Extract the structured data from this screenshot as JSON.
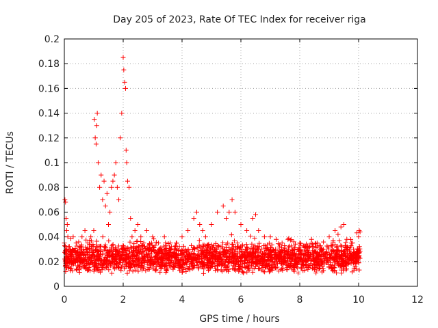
{
  "chart_data": {
    "type": "scatter",
    "title": "Day 205 of 2023, Rate Of TEC Index for receiver riga",
    "xlabel": "GPS time / hours",
    "ylabel": "ROTI / TECUs",
    "xlim": [
      0,
      12
    ],
    "ylim": [
      0,
      0.2
    ],
    "x_ticks": [
      0,
      2,
      4,
      6,
      8,
      10,
      12
    ],
    "y_ticks": [
      0,
      0.02,
      0.04,
      0.06,
      0.08,
      0.1,
      0.12,
      0.14,
      0.16,
      0.18,
      0.2
    ],
    "x_tick_labels": [
      "0",
      "2",
      "4",
      "6",
      "8",
      "10",
      "12"
    ],
    "y_tick_labels": [
      "0",
      "0.02",
      "0.04",
      "0.06",
      "0.08",
      "0.1",
      "0.12",
      "0.14",
      "0.16",
      "0.18",
      "0.2"
    ],
    "grid": true,
    "marker": "+",
    "color": "#ff0000",
    "series": [
      {
        "x": [
          0.0,
          0.02,
          0.04,
          0.06,
          0.08,
          0.1,
          0.12,
          0.14,
          0.05,
          0.07,
          0.2,
          0.25,
          0.3,
          0.4,
          0.5,
          0.6,
          0.7,
          0.8,
          0.9,
          1.0,
          1.02,
          1.05,
          1.08,
          1.1,
          1.12,
          1.15,
          1.2,
          1.25,
          1.3,
          1.35,
          1.4,
          1.45,
          1.5,
          1.55,
          1.6,
          1.65,
          1.7,
          1.75,
          1.8,
          1.85,
          1.9,
          1.95,
          2.0,
          2.02,
          2.05,
          2.08,
          2.1,
          2.12,
          2.15,
          2.2,
          2.25,
          2.3,
          2.4,
          2.5,
          2.6,
          2.7,
          2.8,
          3.0,
          3.2,
          3.4,
          3.6,
          3.8,
          4.0,
          4.2,
          4.4,
          4.5,
          4.6,
          4.7,
          4.8,
          5.0,
          5.2,
          5.4,
          5.5,
          5.6,
          5.7,
          5.8,
          6.0,
          6.2,
          6.4,
          6.5,
          6.6,
          6.8,
          7.0,
          7.2,
          7.4,
          7.6,
          7.8,
          8.0,
          8.2,
          8.4,
          8.6,
          8.8,
          9.0,
          9.2,
          9.3,
          9.4,
          9.5,
          9.6,
          9.8,
          10.0,
          10.02,
          10.05
        ],
        "y": [
          0.035,
          0.07,
          0.068,
          0.055,
          0.045,
          0.05,
          0.04,
          0.032,
          0.02,
          0.015,
          0.03,
          0.025,
          0.04,
          0.035,
          0.03,
          0.04,
          0.045,
          0.035,
          0.04,
          0.045,
          0.135,
          0.12,
          0.115,
          0.13,
          0.14,
          0.1,
          0.08,
          0.09,
          0.07,
          0.085,
          0.065,
          0.075,
          0.05,
          0.06,
          0.08,
          0.085,
          0.09,
          0.1,
          0.08,
          0.07,
          0.12,
          0.14,
          0.185,
          0.175,
          0.165,
          0.16,
          0.11,
          0.1,
          0.085,
          0.08,
          0.055,
          0.04,
          0.045,
          0.05,
          0.04,
          0.035,
          0.045,
          0.04,
          0.035,
          0.04,
          0.03,
          0.035,
          0.04,
          0.045,
          0.055,
          0.06,
          0.05,
          0.045,
          0.04,
          0.05,
          0.06,
          0.065,
          0.055,
          0.06,
          0.07,
          0.06,
          0.05,
          0.045,
          0.055,
          0.058,
          0.045,
          0.04,
          0.04,
          0.038,
          0.035,
          0.038,
          0.036,
          0.035,
          0.032,
          0.038,
          0.035,
          0.03,
          0.04,
          0.045,
          0.042,
          0.048,
          0.05,
          0.038,
          0.035,
          0.04,
          0.045,
          0.044
        ]
      }
    ],
    "background_band": {
      "x_range": [
        0,
        10.05
      ],
      "y_range": [
        0.01,
        0.035
      ]
    }
  }
}
